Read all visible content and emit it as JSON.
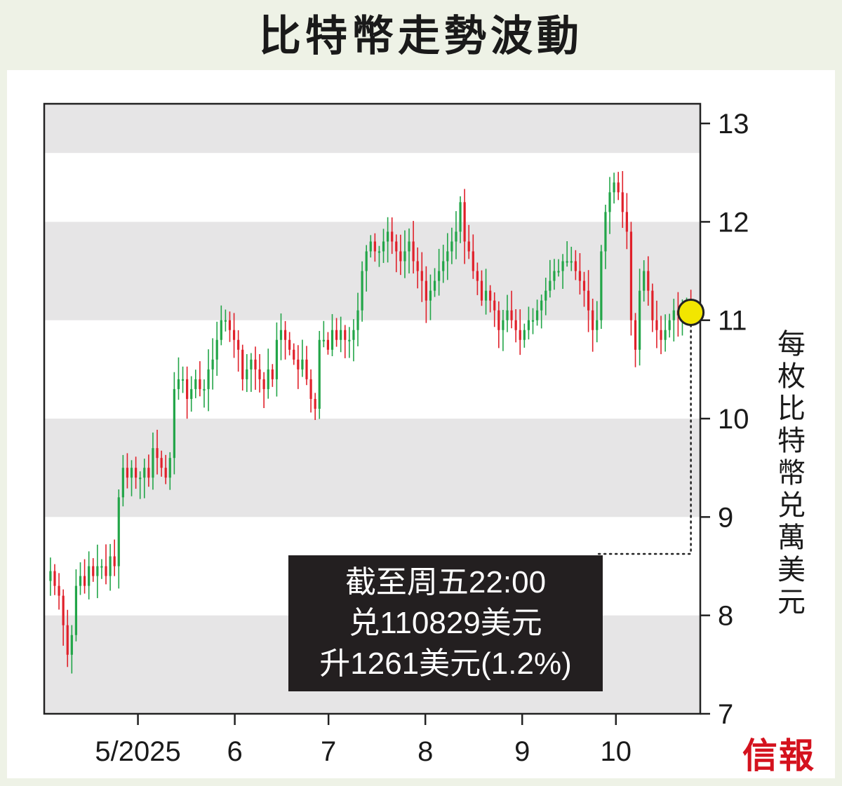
{
  "title": "比特幣走勢波動",
  "brand": "信報",
  "annotation": {
    "line1": "截至周五22:00",
    "line2": "兑110829美元",
    "line3": "升1261美元(1.2%)"
  },
  "colors": {
    "up": "#22a548",
    "down": "#e0202a",
    "band": "#e6e5e6",
    "marker": "#f2e600",
    "brand": "#d4121e"
  },
  "chart_data": {
    "type": "candlestick",
    "ylabel": "每枚比特幣兑萬美元",
    "ylim": [
      7,
      13.2
    ],
    "yticks": [
      "7",
      "8",
      "9",
      "10",
      "11",
      "12",
      "13"
    ],
    "x_month_ticks": [
      {
        "label": "5/2025",
        "day": 30
      },
      {
        "label": "6",
        "day": 61
      },
      {
        "label": "7",
        "day": 91
      },
      {
        "label": "8",
        "day": 122
      },
      {
        "label": "9",
        "day": 153
      },
      {
        "label": "10",
        "day": 183
      }
    ],
    "x_range_days": [
      0,
      210
    ],
    "latest": {
      "day": 207,
      "value": 11.08
    },
    "series_close": [
      8.45,
      8.3,
      8.2,
      7.9,
      7.6,
      7.8,
      8.3,
      8.4,
      8.3,
      8.5,
      8.4,
      8.5,
      8.5,
      8.4,
      8.6,
      8.5,
      9.2,
      9.5,
      9.4,
      9.5,
      9.4,
      9.4,
      9.5,
      9.4,
      9.7,
      9.6,
      9.5,
      9.4,
      9.6,
      10.3,
      10.4,
      10.4,
      10.2,
      10.3,
      10.4,
      10.3,
      10.3,
      10.5,
      10.6,
      10.8,
      11.0,
      11.0,
      10.9,
      10.8,
      10.7,
      10.4,
      10.5,
      10.6,
      10.5,
      10.4,
      10.3,
      10.5,
      10.4,
      10.8,
      10.9,
      10.8,
      10.7,
      10.6,
      10.5,
      10.6,
      10.4,
      10.2,
      10.1,
      10.8,
      10.8,
      10.7,
      10.9,
      10.8,
      10.9,
      10.8,
      10.8,
      10.9,
      11.1,
      11.5,
      11.7,
      11.8,
      11.7,
      11.7,
      11.8,
      11.9,
      11.8,
      11.7,
      11.6,
      11.7,
      11.8,
      11.6,
      11.5,
      11.4,
      11.2,
      11.3,
      11.4,
      11.5,
      11.6,
      11.7,
      11.8,
      11.9,
      12.2,
      11.8,
      11.7,
      11.5,
      11.4,
      11.2,
      11.3,
      11.2,
      11.1,
      10.9,
      11.0,
      11.1,
      11.0,
      10.9,
      10.8,
      10.9,
      11.0,
      11.0,
      11.1,
      11.2,
      11.3,
      11.4,
      11.5,
      11.5,
      11.6,
      11.6,
      11.6,
      11.5,
      11.4,
      11.3,
      11.1,
      10.9,
      11.0,
      11.7,
      12.1,
      12.3,
      12.4,
      12.3,
      12.1,
      11.9,
      11.0,
      10.7,
      11.3,
      11.5,
      11.3,
      11.0,
      10.9,
      10.8,
      10.9,
      11.0,
      11.1,
      11.05,
      11.08,
      11.1,
      11.08
    ]
  }
}
